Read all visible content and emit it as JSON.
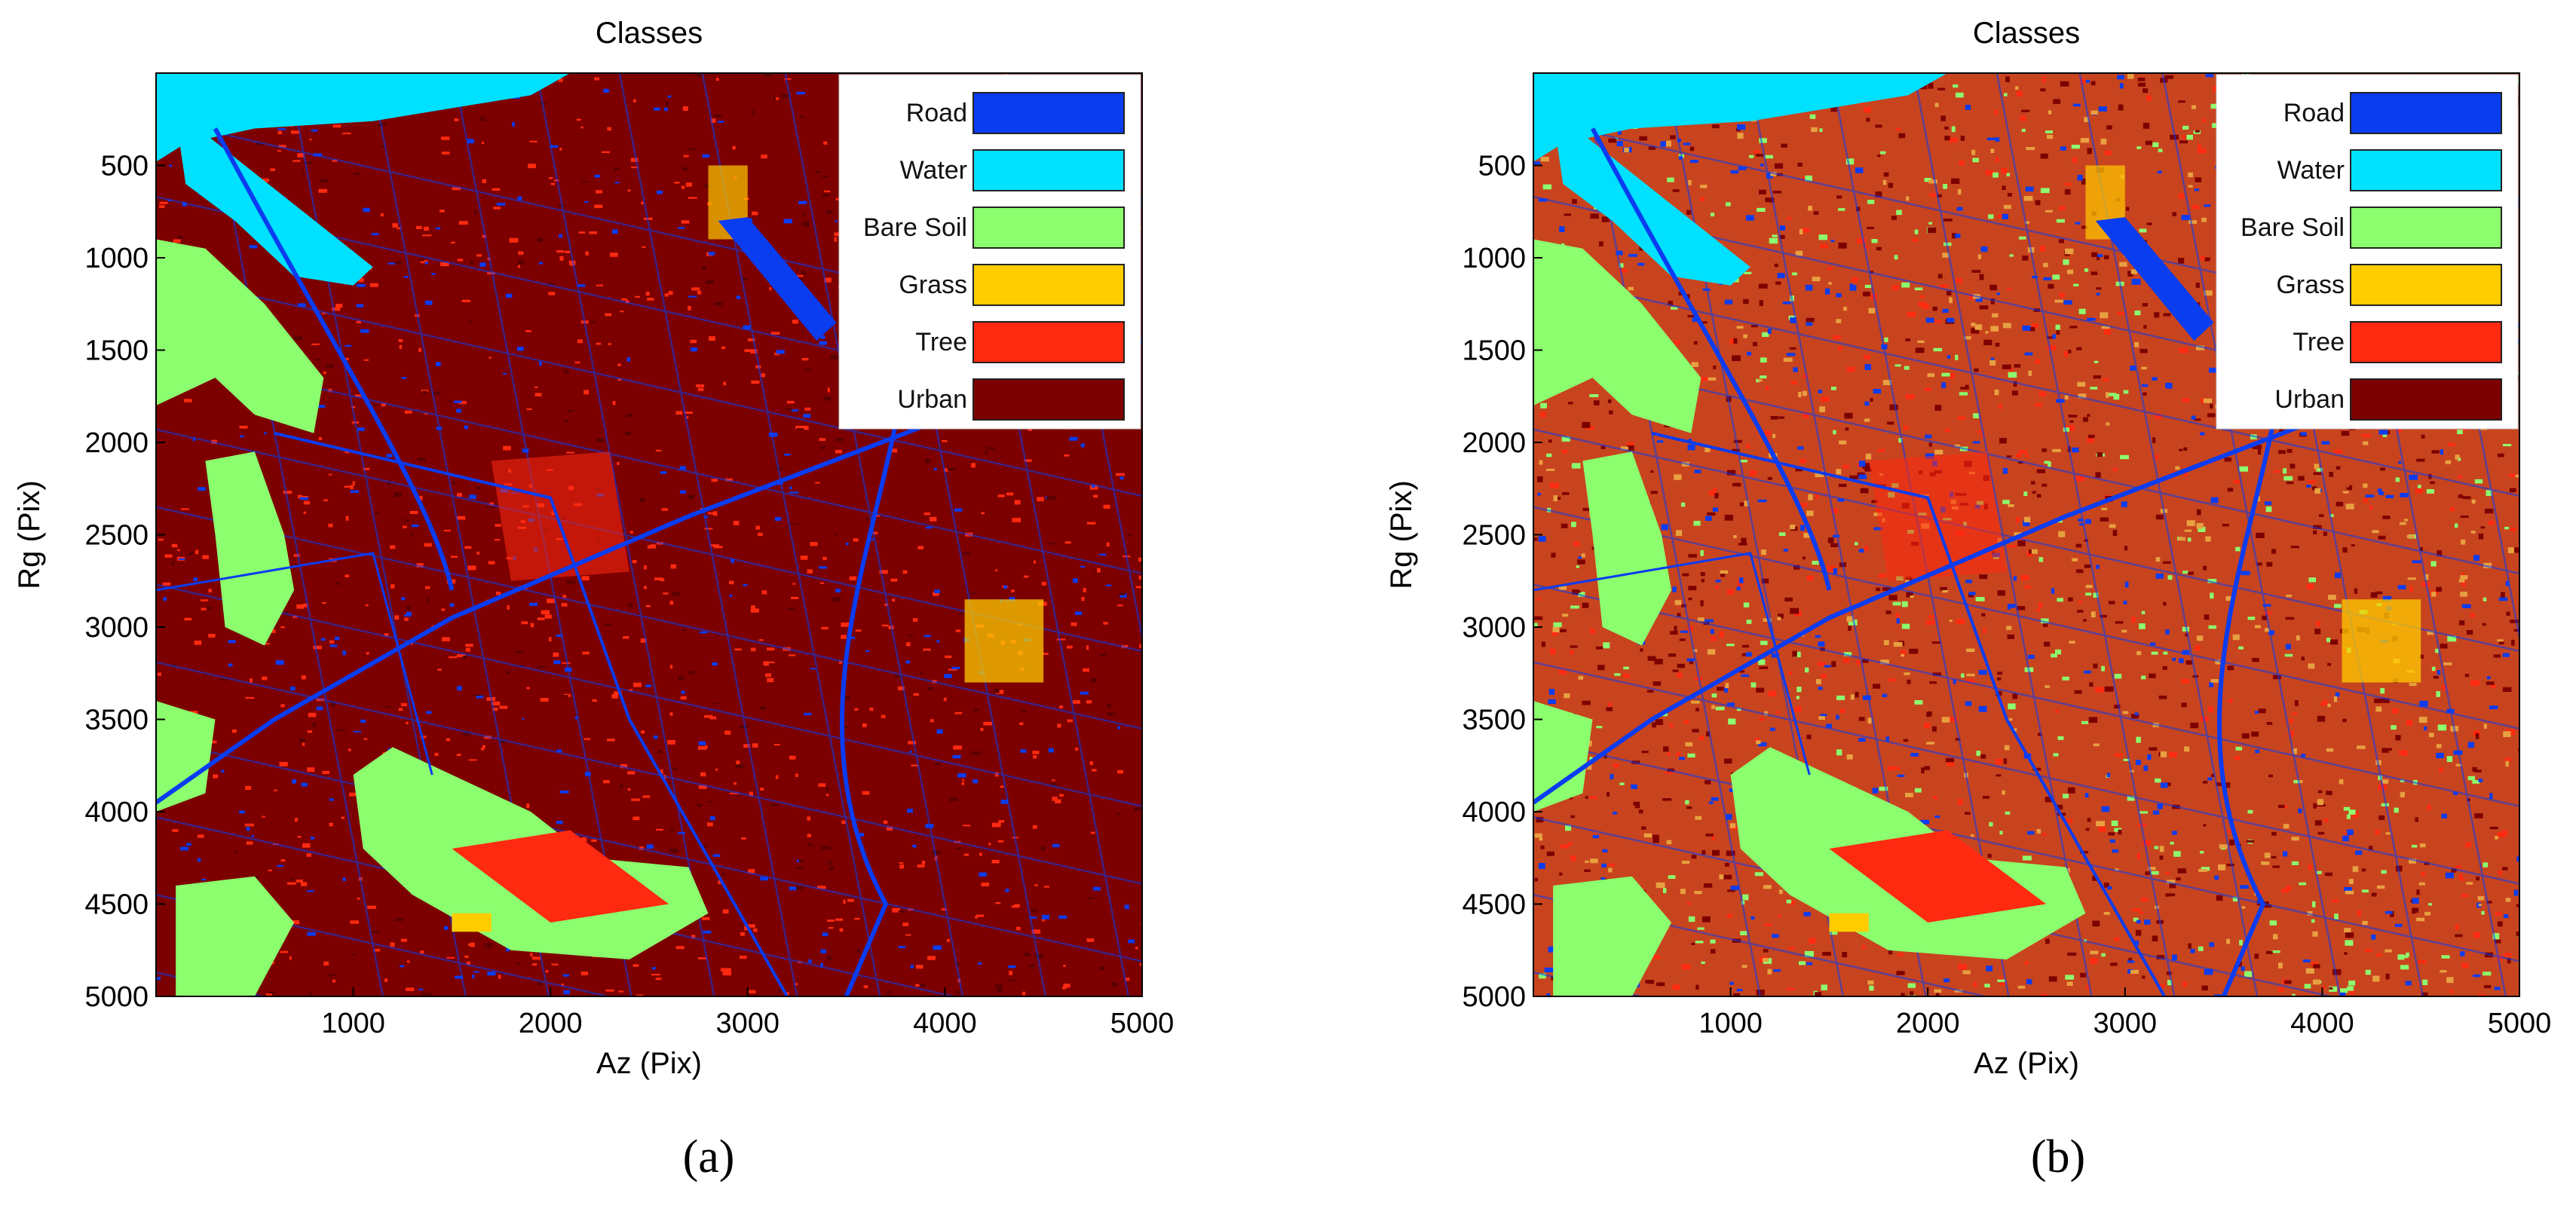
{
  "chart_data": [
    {
      "type": "heatmap",
      "panel_label": "(a)",
      "title": "Classes",
      "xlabel": "Az (Pix)",
      "ylabel": "Rg (Pix)",
      "xlim": [
        0,
        5000
      ],
      "ylim": [
        0,
        5000
      ],
      "y_reversed": true,
      "xticks": [
        1000,
        2000,
        3000,
        4000,
        5000
      ],
      "yticks": [
        500,
        1000,
        1500,
        2000,
        2500,
        3000,
        3500,
        4000,
        4500,
        5000
      ],
      "legend_position": "top-right",
      "legend": [
        {
          "label": "Road",
          "color": "#0a3cf0"
        },
        {
          "label": "Water",
          "color": "#00e0ff"
        },
        {
          "label": "Bare Soil",
          "color": "#8cff6e"
        },
        {
          "label": "Grass",
          "color": "#ffcc00"
        },
        {
          "label": "Tree",
          "color": "#ff2a10"
        },
        {
          "label": "Urban",
          "color": "#7d0000"
        }
      ]
    },
    {
      "type": "heatmap",
      "panel_label": "(b)",
      "title": "Classes",
      "xlabel": "Az (Pix)",
      "ylabel": "Rg (Pix)",
      "xlim": [
        0,
        5000
      ],
      "ylim": [
        0,
        5000
      ],
      "y_reversed": true,
      "xticks": [
        1000,
        2000,
        3000,
        4000,
        5000
      ],
      "yticks": [
        500,
        1000,
        1500,
        2000,
        2500,
        3000,
        3500,
        4000,
        4500,
        5000
      ],
      "legend_position": "top-right",
      "legend": [
        {
          "label": "Road",
          "color": "#0a3cf0"
        },
        {
          "label": "Water",
          "color": "#00e0ff"
        },
        {
          "label": "Bare Soil",
          "color": "#8cff6e"
        },
        {
          "label": "Grass",
          "color": "#ffcc00"
        },
        {
          "label": "Tree",
          "color": "#ff2a10"
        },
        {
          "label": "Urban",
          "color": "#7d0000"
        }
      ]
    }
  ]
}
